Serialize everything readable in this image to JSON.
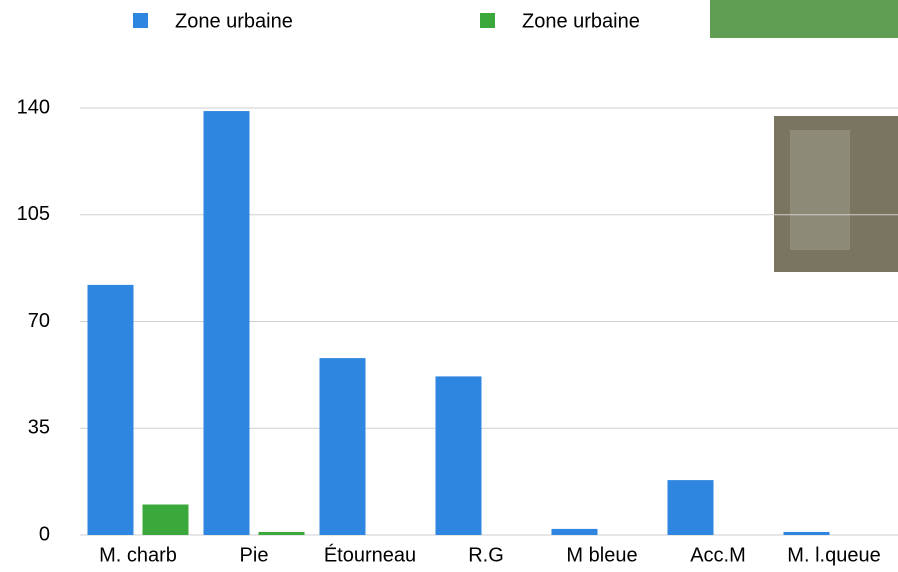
{
  "chart_data": {
    "type": "bar",
    "categories": [
      "M. charb",
      "Pie",
      "Étourneau",
      "R.G",
      "M bleue",
      "Acc.M",
      "M. l.queue"
    ],
    "series": [
      {
        "name": "Zone urbaine",
        "color": "#2f86e0",
        "values": [
          82,
          139,
          58,
          52,
          2,
          18,
          1
        ]
      },
      {
        "name": "Zone urbaine",
        "color": "#3aa83a",
        "values": [
          10,
          1,
          0,
          0,
          0,
          0,
          0
        ]
      }
    ],
    "ylim": [
      0,
      140
    ],
    "yticks": [
      0,
      35,
      70,
      105,
      140
    ],
    "grid": true
  }
}
